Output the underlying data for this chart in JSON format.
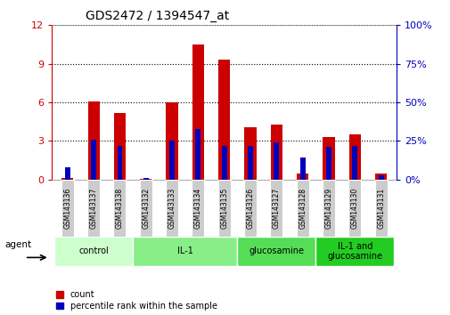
{
  "title": "GDS2472 / 1394547_at",
  "categories": [
    "GSM143136",
    "GSM143137",
    "GSM143138",
    "GSM143132",
    "GSM143133",
    "GSM143134",
    "GSM143135",
    "GSM143126",
    "GSM143127",
    "GSM143128",
    "GSM143129",
    "GSM143130",
    "GSM143131"
  ],
  "count_values": [
    0.15,
    6.1,
    5.2,
    0.05,
    6.0,
    10.5,
    9.3,
    4.1,
    4.3,
    0.5,
    3.3,
    3.5,
    0.5
  ],
  "percentile_values": [
    8,
    26,
    22,
    1,
    25,
    33,
    22,
    22,
    24,
    14,
    21,
    22,
    3
  ],
  "left_ylim": [
    0,
    12
  ],
  "right_ylim": [
    0,
    100
  ],
  "left_yticks": [
    0,
    3,
    6,
    9,
    12
  ],
  "right_yticks": [
    0,
    25,
    50,
    75,
    100
  ],
  "bar_color": "#cc0000",
  "percentile_color": "#0000bb",
  "bar_width": 0.45,
  "blue_bar_width": 0.2,
  "groups": [
    {
      "label": "control",
      "indices": [
        0,
        1,
        2
      ],
      "color": "#ccffcc"
    },
    {
      "label": "IL-1",
      "indices": [
        3,
        4,
        5,
        6
      ],
      "color": "#88ee88"
    },
    {
      "label": "glucosamine",
      "indices": [
        7,
        8,
        9
      ],
      "color": "#55dd55"
    },
    {
      "label": "IL-1 and\nglucosamine",
      "indices": [
        10,
        11,
        12
      ],
      "color": "#22cc22"
    }
  ],
  "agent_label": "agent",
  "legend_count_label": "count",
  "legend_percentile_label": "percentile rank within the sample",
  "tick_label_bg": "#cccccc",
  "left_axis_color": "#cc0000",
  "right_axis_color": "#0000bb",
  "title_fontsize": 10,
  "label_fontsize": 7,
  "legend_fontsize": 7
}
